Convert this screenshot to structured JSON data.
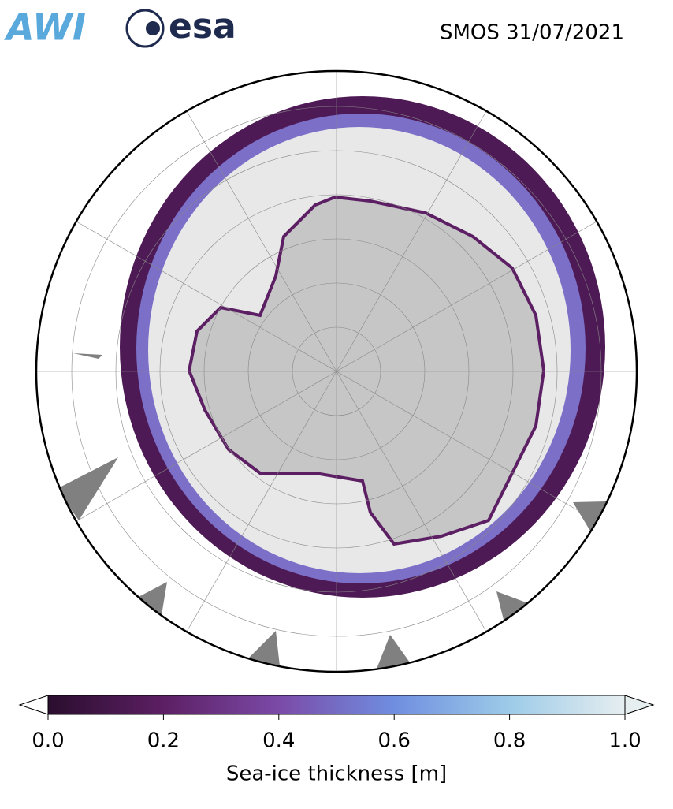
{
  "header": {
    "logos": [
      "AWI",
      "esa"
    ],
    "title": "SMOS 31/07/2021"
  },
  "colorbar": {
    "label": "Sea-ice thickness [m]",
    "range": [
      0,
      1
    ],
    "ticks": [
      {
        "value": 0,
        "label": "0.0"
      },
      {
        "value": 0.2,
        "label": "0.2"
      },
      {
        "value": 0.4,
        "label": "0.4"
      },
      {
        "value": 0.6,
        "label": "0.6"
      },
      {
        "value": 0.8,
        "label": "0.8"
      },
      {
        "value": 1,
        "label": "1.0"
      }
    ],
    "colors": [
      "#2a0e2e",
      "#5c1f63",
      "#7b4aa8",
      "#6f8ee0",
      "#9dcbe8",
      "#e6eef0"
    ]
  }
}
